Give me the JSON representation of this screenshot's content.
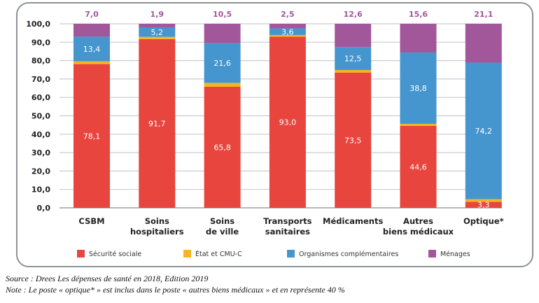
{
  "chart_data": {
    "type": "bar",
    "stacked": true,
    "title": "",
    "xlabel": "",
    "ylabel": "",
    "ylim": [
      0,
      100
    ],
    "yticks": [
      "0,0",
      "10,0",
      "20,0",
      "30,0",
      "40,0",
      "50,0",
      "60,0",
      "70,0",
      "80,0",
      "90,0",
      "100,0"
    ],
    "grid": true,
    "categories": [
      [
        "CSBM"
      ],
      [
        "Soins",
        "hospitaliers"
      ],
      [
        "Soins",
        "de ville"
      ],
      [
        "Transports",
        "sanitaires"
      ],
      [
        "Médicaments"
      ],
      [
        "Autres",
        "biens médicaux"
      ],
      [
        "Optique*"
      ]
    ],
    "series": [
      {
        "name": "Sécurité sociale",
        "color": "#e8453e",
        "values": [
          78.1,
          91.7,
          65.8,
          93.0,
          73.5,
          44.6,
          3.3
        ],
        "labels": [
          "78,1",
          "91,7",
          "65,8",
          "93,0",
          "73,5",
          "44,6",
          "3,3"
        ]
      },
      {
        "name": "État et CMU-C",
        "color": "#f6b51c",
        "values": [
          1.5,
          1.2,
          2.1,
          0.9,
          1.4,
          1.0,
          1.4
        ],
        "labels": [
          "",
          "",
          "",
          "",
          "",
          "",
          ""
        ]
      },
      {
        "name": "Organismes complémentaires",
        "color": "#4596cf",
        "values": [
          13.4,
          5.2,
          21.6,
          3.6,
          12.5,
          38.8,
          74.2
        ],
        "labels": [
          "13,4",
          "5,2",
          "21,6",
          "3,6",
          "12,5",
          "38,8",
          "74,2"
        ]
      },
      {
        "name": "Ménages",
        "color": "#a3579b",
        "values": [
          7.0,
          1.9,
          10.5,
          2.5,
          12.6,
          15.6,
          21.1
        ],
        "labels": [
          "7,0",
          "1,9",
          "10,5",
          "2,5",
          "12,6",
          "15,6",
          "21,1"
        ]
      }
    ],
    "legend_position": "bottom"
  },
  "notes": {
    "source": "Source : Drees Les dépenses de santé en 2018, Edition 2019",
    "note": "Note : Le poste « optique* » est inclus dans le poste « autres biens médicaux » et en représente 40 %"
  }
}
